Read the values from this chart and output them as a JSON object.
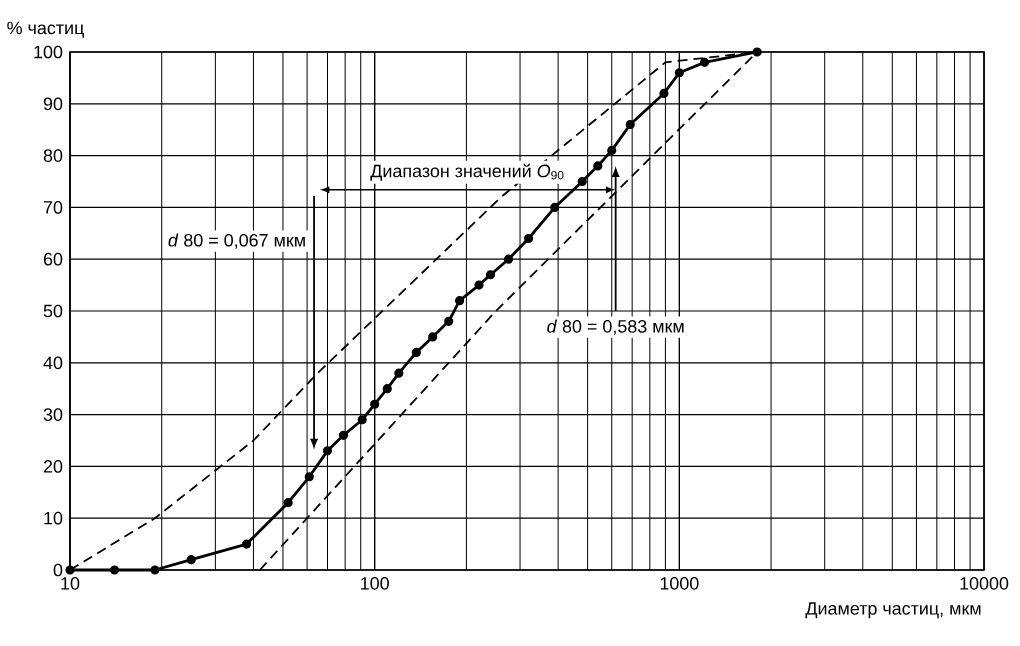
{
  "chart_data": {
    "type": "line",
    "xlabel": "Диаметр частиц, мкм",
    "ylabel": "% частиц",
    "series": [
      {
        "x": [
          10,
          14,
          19,
          25,
          38,
          52,
          61,
          70,
          79,
          91,
          100,
          110,
          120,
          137,
          155,
          175,
          190,
          220,
          240,
          275,
          320,
          390,
          480,
          540,
          600,
          690,
          890,
          1000,
          1210,
          1800
        ],
        "values": [
          0,
          0,
          0,
          2,
          5,
          13,
          18,
          23,
          26,
          29,
          32,
          35,
          38,
          42,
          45,
          48,
          52,
          55,
          57,
          60,
          64,
          70,
          75,
          78,
          81,
          86,
          92,
          96,
          98,
          100
        ],
        "color": "#000000",
        "marker": "circle",
        "line_style": "solid"
      },
      {
        "x": [
          10,
          19,
          40,
          65,
          260,
          900,
          1800
        ],
        "values": [
          0,
          10,
          25,
          38,
          72,
          98,
          100
        ],
        "color": "#000000",
        "marker": "none",
        "line_style": "dashed"
      },
      {
        "x": [
          42,
          250,
          1800
        ],
        "values": [
          0,
          50,
          100
        ],
        "color": "#000000",
        "marker": "none",
        "line_style": "dashed"
      }
    ],
    "annotations": [
      "*d* 80 = 0,067 мкм",
      "Диапазон значений *O*$_{90}$",
      "*d* 80 = 0,583 мкм"
    ],
    "log": "x",
    "xlim": [
      10,
      10000
    ],
    "ylim": [
      0,
      100
    ],
    "xticks": [
      10,
      100,
      1000,
      10000
    ],
    "yticks": [
      0,
      10,
      20,
      30,
      40,
      50,
      60,
      70,
      80,
      90,
      100
    ],
    "grid": true
  }
}
